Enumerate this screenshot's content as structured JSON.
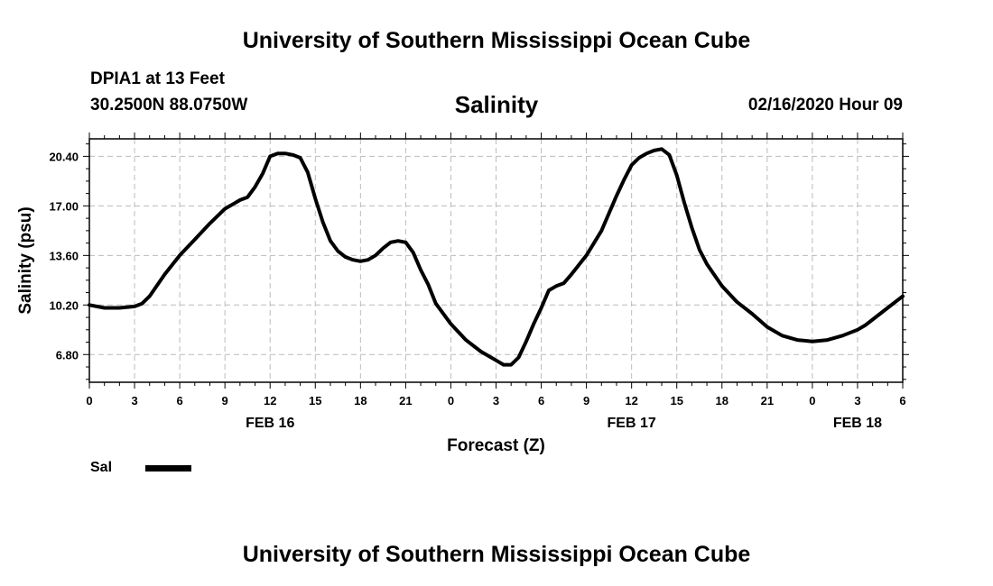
{
  "header": {
    "title": "University of Southern Mississippi Ocean Cube",
    "station": "DPIA1 at 13 Feet",
    "coords": "30.2500N 88.0750W",
    "chart_title": "Salinity",
    "datetime": "02/16/2020 Hour 09"
  },
  "footer": {
    "title": "University of Southern Mississippi Ocean Cube"
  },
  "legend": {
    "label": "Sal"
  },
  "chart_data": {
    "type": "line",
    "title": "Salinity",
    "xlabel": "Forecast (Z)",
    "ylabel": "Salinity (psu)",
    "x_unit": "hours from FEB 16 00Z",
    "xlim": [
      0,
      54
    ],
    "ylim": [
      4.9,
      21.6
    ],
    "x_ticks": [
      0,
      3,
      6,
      9,
      12,
      15,
      18,
      21,
      24,
      27,
      30,
      33,
      36,
      39,
      42,
      45,
      48,
      51,
      54
    ],
    "x_tick_labels": [
      "0",
      "3",
      "6",
      "9",
      "12",
      "15",
      "18",
      "21",
      "0",
      "3",
      "6",
      "9",
      "12",
      "15",
      "18",
      "21",
      "0",
      "3",
      "6"
    ],
    "y_ticks": [
      6.8,
      10.2,
      13.6,
      17.0,
      20.4
    ],
    "y_tick_labels": [
      "6.80",
      "10.20",
      "13.60",
      "17.00",
      "20.40"
    ],
    "date_labels": [
      {
        "x": 12,
        "label": "FEB 16"
      },
      {
        "x": 36,
        "label": "FEB 17"
      },
      {
        "x": 51,
        "label": "FEB 18"
      }
    ],
    "grid": true,
    "legend_position": "bottom-left",
    "series": [
      {
        "name": "Sal",
        "color": "#000000",
        "x": [
          0,
          1,
          2,
          3,
          3.5,
          4,
          5,
          6,
          7,
          8,
          9,
          9.5,
          10,
          10.5,
          11,
          11.5,
          12,
          12.5,
          13,
          13.5,
          14,
          14.5,
          15,
          15.5,
          16,
          16.5,
          17,
          17.5,
          18,
          18.5,
          19,
          19.5,
          20,
          20.5,
          21,
          21.5,
          22,
          22.5,
          23,
          24,
          25,
          26,
          27,
          27.5,
          28,
          28.5,
          29,
          29.5,
          30,
          30.5,
          31,
          31.5,
          32,
          33,
          34,
          35,
          35.5,
          36,
          36.5,
          37,
          37.5,
          38,
          38.5,
          39,
          39.5,
          40,
          40.5,
          41,
          42,
          43,
          44,
          45,
          46,
          47,
          48,
          49,
          50,
          51,
          51.5,
          52,
          53,
          54
        ],
        "values": [
          10.2,
          10.0,
          10.0,
          10.1,
          10.3,
          10.8,
          12.3,
          13.6,
          14.7,
          15.8,
          16.8,
          17.1,
          17.4,
          17.6,
          18.3,
          19.2,
          20.4,
          20.6,
          20.6,
          20.5,
          20.3,
          19.3,
          17.5,
          15.9,
          14.6,
          13.9,
          13.5,
          13.3,
          13.2,
          13.3,
          13.6,
          14.1,
          14.5,
          14.6,
          14.5,
          13.8,
          12.6,
          11.6,
          10.3,
          8.9,
          7.8,
          7.0,
          6.4,
          6.1,
          6.1,
          6.6,
          7.7,
          8.9,
          10.0,
          11.2,
          11.5,
          11.7,
          12.3,
          13.6,
          15.3,
          17.7,
          18.8,
          19.8,
          20.3,
          20.6,
          20.8,
          20.9,
          20.5,
          19.1,
          17.2,
          15.5,
          14.0,
          13.0,
          11.5,
          10.4,
          9.6,
          8.7,
          8.1,
          7.8,
          7.7,
          7.8,
          8.1,
          8.5,
          8.8,
          9.2,
          10.0,
          10.8
        ]
      }
    ]
  }
}
